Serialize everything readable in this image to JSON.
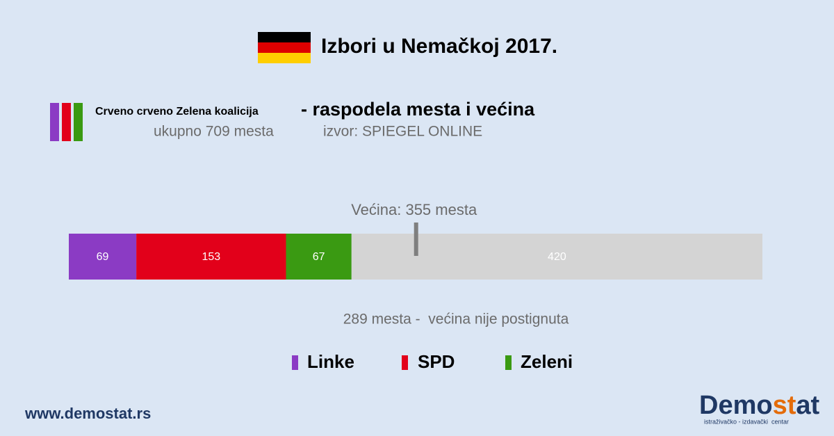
{
  "chart_data": {
    "type": "stacked-bar",
    "title": "Izbori u Nemačkoj 2017.",
    "coalition": "Crveno crveno Zelena koalicija",
    "subtitle": "- raspodela mesta i većina",
    "total_note": "ukupno 709 mesta",
    "source": "izvor: SPIEGEL ONLINE",
    "xlim": [
      0,
      709
    ],
    "series": [
      {
        "name": "Linke",
        "color": "#8b3bc4",
        "values": [
          69
        ]
      },
      {
        "name": "SPD",
        "color": "#e2001a",
        "values": [
          153
        ]
      },
      {
        "name": "Zeleni",
        "color": "#3a9a12",
        "values": [
          67
        ]
      }
    ],
    "remainder": {
      "color": "#d4d4d4",
      "values": [
        420
      ]
    },
    "majority": {
      "value": 355,
      "label": "Većina: 355 mesta",
      "color": "#7f7f7f"
    },
    "note": "289 mesta -  većina nije postignuta"
  },
  "footer": {
    "website": "www.demostat.rs",
    "logo": [
      "Demo",
      "st",
      "at"
    ],
    "logo_tagline": "istraživačko - izdavački  centar"
  }
}
